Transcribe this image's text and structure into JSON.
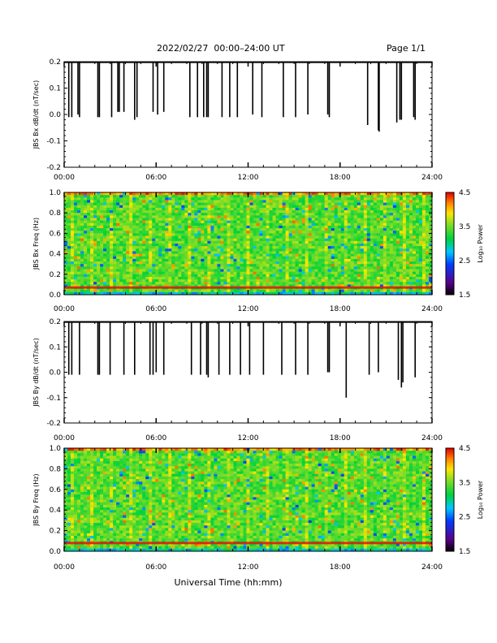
{
  "header": {
    "title": "2022/02/27  00:00–24:00 UT",
    "page_label": "Page 1/1"
  },
  "footer": {
    "xlabel": "Universal Time (hh:mm)"
  },
  "chart_data": [
    {
      "type": "bar",
      "ylabel": "JBS Bx dB/dt (nT/sec)",
      "ylim": [
        -0.2,
        0.2
      ],
      "xlim": [
        "00:00",
        "24:00"
      ],
      "x_ticks": [
        "00:00",
        "06:00",
        "12:00",
        "18:00",
        "24:00"
      ],
      "y_ticks": [
        "-0.2",
        "-0.1",
        "0.0",
        "0.1",
        "0.2"
      ],
      "spikes": [
        {
          "t": 0.3,
          "low": -0.01
        },
        {
          "t": 0.5,
          "low": -0.01
        },
        {
          "t": 0.9,
          "low": 0.0
        },
        {
          "t": 1.0,
          "low": -0.01
        },
        {
          "t": 2.2,
          "low": -0.01
        },
        {
          "t": 2.3,
          "low": -0.01
        },
        {
          "t": 3.1,
          "low": -0.01
        },
        {
          "t": 3.5,
          "low": 0.01
        },
        {
          "t": 3.6,
          "low": 0.01
        },
        {
          "t": 3.9,
          "low": 0.01
        },
        {
          "t": 4.6,
          "low": -0.02
        },
        {
          "t": 4.75,
          "low": -0.01
        },
        {
          "t": 5.8,
          "low": 0.01
        },
        {
          "t": 6.1,
          "low": 0.0
        },
        {
          "t": 6.5,
          "low": 0.01
        },
        {
          "t": 8.2,
          "low": -0.01
        },
        {
          "t": 8.7,
          "low": -0.01
        },
        {
          "t": 9.1,
          "low": -0.01
        },
        {
          "t": 9.3,
          "low": -0.01
        },
        {
          "t": 9.4,
          "low": -0.01
        },
        {
          "t": 10.3,
          "low": -0.01
        },
        {
          "t": 10.8,
          "low": -0.01
        },
        {
          "t": 11.3,
          "low": -0.01
        },
        {
          "t": 12.3,
          "low": 0.0
        },
        {
          "t": 12.9,
          "low": -0.01
        },
        {
          "t": 14.3,
          "low": -0.01
        },
        {
          "t": 15.1,
          "low": -0.01
        },
        {
          "t": 15.9,
          "low": 0.0
        },
        {
          "t": 17.2,
          "low": 0.0
        },
        {
          "t": 17.3,
          "low": -0.01
        },
        {
          "t": 19.8,
          "low": -0.04
        },
        {
          "t": 20.5,
          "low": -0.06
        },
        {
          "t": 20.55,
          "low": -0.065
        },
        {
          "t": 21.7,
          "low": -0.03
        },
        {
          "t": 21.9,
          "low": -0.02
        },
        {
          "t": 22.0,
          "low": -0.02
        },
        {
          "t": 22.8,
          "low": -0.01
        },
        {
          "t": 22.9,
          "low": -0.02
        }
      ]
    },
    {
      "type": "heatmap",
      "ylabel": "JBS Bx Freq (Hz)",
      "xlim": [
        "00:00",
        "24:00"
      ],
      "ylim": [
        0.0,
        1.0
      ],
      "x_ticks": [
        "00:00",
        "06:00",
        "12:00",
        "18:00",
        "24:00"
      ],
      "y_ticks": [
        "0.0",
        "0.2",
        "0.4",
        "0.6",
        "0.8",
        "1.0"
      ],
      "colorbar": {
        "label": "Log₁₀ Power",
        "range": [
          1.5,
          4.5
        ],
        "ticks": [
          "1.5",
          "2.5",
          "3.5",
          "4.5"
        ]
      },
      "band_hz": 0.07
    },
    {
      "type": "bar",
      "ylabel": "JBS By dB/dt (nT/sec)",
      "ylim": [
        -0.2,
        0.2
      ],
      "xlim": [
        "00:00",
        "24:00"
      ],
      "x_ticks": [
        "00:00",
        "06:00",
        "12:00",
        "18:00",
        "24:00"
      ],
      "y_ticks": [
        "-0.2",
        "-0.1",
        "0.0",
        "0.1",
        "0.2"
      ],
      "spikes": [
        {
          "t": 0.3,
          "low": -0.01
        },
        {
          "t": 0.5,
          "low": -0.01
        },
        {
          "t": 1.0,
          "low": -0.01
        },
        {
          "t": 2.2,
          "low": -0.01
        },
        {
          "t": 2.3,
          "low": -0.01
        },
        {
          "t": 3.0,
          "low": -0.01
        },
        {
          "t": 3.9,
          "low": -0.01
        },
        {
          "t": 4.6,
          "low": -0.01
        },
        {
          "t": 5.6,
          "low": -0.01
        },
        {
          "t": 5.8,
          "low": -0.01
        },
        {
          "t": 6.0,
          "low": 0.0
        },
        {
          "t": 6.5,
          "low": -0.01
        },
        {
          "t": 8.3,
          "low": -0.01
        },
        {
          "t": 8.9,
          "low": -0.01
        },
        {
          "t": 9.3,
          "low": -0.01
        },
        {
          "t": 9.4,
          "low": -0.02
        },
        {
          "t": 10.1,
          "low": -0.01
        },
        {
          "t": 10.8,
          "low": -0.01
        },
        {
          "t": 11.5,
          "low": -0.01
        },
        {
          "t": 12.1,
          "low": -0.01
        },
        {
          "t": 13.0,
          "low": -0.01
        },
        {
          "t": 14.2,
          "low": -0.01
        },
        {
          "t": 15.1,
          "low": -0.01
        },
        {
          "t": 15.9,
          "low": -0.01
        },
        {
          "t": 17.2,
          "low": 0.0
        },
        {
          "t": 17.3,
          "low": 0.0
        },
        {
          "t": 18.4,
          "low": -0.1
        },
        {
          "t": 19.9,
          "low": -0.01
        },
        {
          "t": 20.5,
          "low": 0.0
        },
        {
          "t": 21.8,
          "low": -0.03
        },
        {
          "t": 22.0,
          "low": -0.06
        },
        {
          "t": 22.1,
          "low": -0.04
        },
        {
          "t": 22.9,
          "low": -0.02
        }
      ]
    },
    {
      "type": "heatmap",
      "ylabel": "JBS By Freq (Hz)",
      "xlim": [
        "00:00",
        "24:00"
      ],
      "ylim": [
        0.0,
        1.0
      ],
      "x_ticks": [
        "00:00",
        "06:00",
        "12:00",
        "18:00",
        "24:00"
      ],
      "y_ticks": [
        "0.0",
        "0.2",
        "0.4",
        "0.6",
        "0.8",
        "1.0"
      ],
      "colorbar": {
        "label": "Log₁₀ Power",
        "range": [
          1.5,
          4.5
        ],
        "ticks": [
          "1.5",
          "2.5",
          "3.5",
          "4.5"
        ]
      },
      "band_hz": 0.08
    }
  ]
}
